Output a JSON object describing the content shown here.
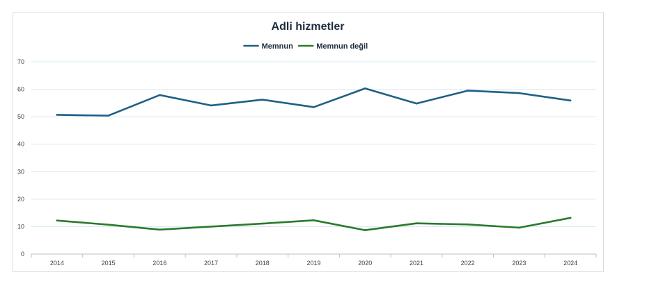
{
  "chart_data": {
    "type": "line",
    "title": "Adli hizmetler",
    "categories": [
      "2014",
      "2015",
      "2016",
      "2017",
      "2018",
      "2019",
      "2020",
      "2021",
      "2022",
      "2023",
      "2024"
    ],
    "series": [
      {
        "name": "Memnun",
        "color": "#1f5f86",
        "values": [
          50.7,
          50.4,
          57.9,
          54.1,
          56.2,
          53.5,
          60.3,
          54.8,
          59.5,
          58.6,
          55.9
        ]
      },
      {
        "name": "Memnun değil",
        "color": "#2a7a2a",
        "values": [
          12.2,
          10.7,
          8.9,
          10.0,
          11.1,
          12.3,
          8.7,
          11.2,
          10.8,
          9.6,
          13.2
        ]
      }
    ],
    "ylim": [
      0,
      70
    ],
    "yticks": [
      0,
      10,
      20,
      30,
      40,
      50,
      60,
      70
    ],
    "grid": true,
    "legend_position": "top"
  }
}
